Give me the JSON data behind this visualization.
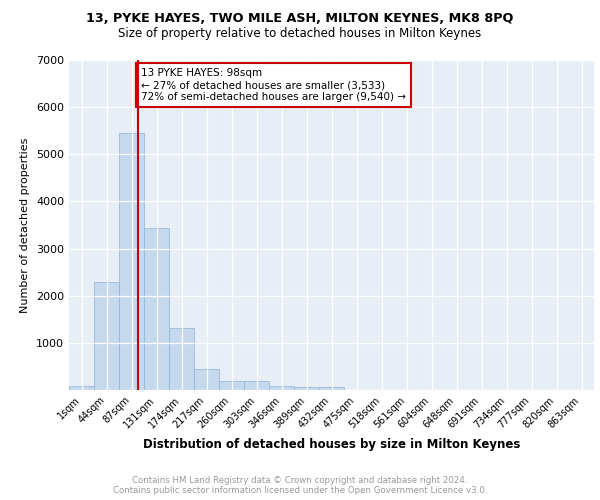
{
  "title1": "13, PYKE HAYES, TWO MILE ASH, MILTON KEYNES, MK8 8PQ",
  "title2": "Size of property relative to detached houses in Milton Keynes",
  "xlabel": "Distribution of detached houses by size in Milton Keynes",
  "ylabel": "Number of detached properties",
  "bin_labels": [
    "1sqm",
    "44sqm",
    "87sqm",
    "131sqm",
    "174sqm",
    "217sqm",
    "260sqm",
    "303sqm",
    "346sqm",
    "389sqm",
    "432sqm",
    "475sqm",
    "518sqm",
    "561sqm",
    "604sqm",
    "648sqm",
    "691sqm",
    "734sqm",
    "777sqm",
    "820sqm",
    "863sqm"
  ],
  "bar_values": [
    80,
    2300,
    5450,
    3430,
    1320,
    440,
    185,
    185,
    90,
    70,
    60,
    0,
    0,
    0,
    0,
    0,
    0,
    0,
    0,
    0,
    0
  ],
  "bar_color": "#c5d8ed",
  "bar_edgecolor": "#8ab4d4",
  "ylim": [
    0,
    7000
  ],
  "yticks": [
    0,
    1000,
    2000,
    3000,
    4000,
    5000,
    6000,
    7000
  ],
  "vline_x": 2.25,
  "vline_color": "#cc0000",
  "annotation_text": "13 PYKE HAYES: 98sqm\n← 27% of detached houses are smaller (3,533)\n72% of semi-detached houses are larger (9,540) →",
  "footer_text": "Contains HM Land Registry data © Crown copyright and database right 2024.\nContains public sector information licensed under the Open Government Licence v3.0.",
  "plot_bg_color": "#e8eef5",
  "grid_color": "#ffffff"
}
